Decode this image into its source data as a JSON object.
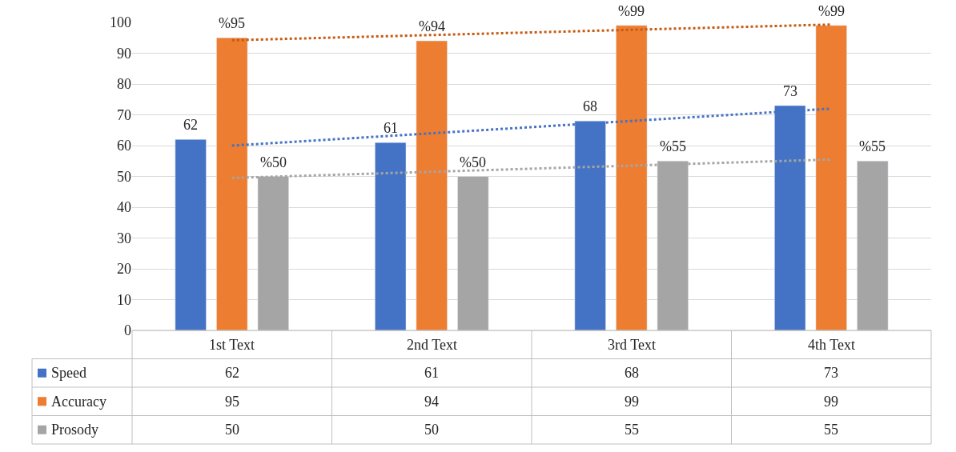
{
  "chart_data": {
    "type": "bar",
    "categories": [
      "1st Text",
      "2nd Text",
      "3rd Text",
      "4th Text"
    ],
    "series": [
      {
        "name": "Speed",
        "color": "#4472c4",
        "values": [
          62,
          61,
          68,
          73
        ]
      },
      {
        "name": "Accuracy",
        "color": "#ed7d31",
        "values": [
          95,
          94,
          99,
          99
        ]
      },
      {
        "name": "Prosody",
        "color": "#a5a5a5",
        "values": [
          50,
          50,
          55,
          55
        ]
      },
      {
        "type": "line",
        "color": "#4472c4",
        "line_style": "dotted",
        "x": [
          "1st Text",
          "2nd Text",
          "3rd Text",
          "4th Text"
        ],
        "values": [
          60,
          64,
          68,
          72
        ],
        "value_labels": [
          null,
          null,
          null,
          null
        ]
      },
      {
        "type": "line",
        "color": "#c55a11",
        "line_style": "dotted",
        "x": [
          "1st Text",
          "2nd Text",
          "3rd Text",
          "4th Text"
        ],
        "values": [
          94.2,
          95.9,
          97.6,
          99.3
        ],
        "value_labels": [
          null,
          null,
          null,
          null
        ]
      },
      {
        "type": "line",
        "color": "#a5a5a5",
        "line_style": "dotted",
        "x": [
          "1st Text",
          "2nd Text",
          "3rd Text",
          "4th Text"
        ],
        "values": [
          49.5,
          51.5,
          53.5,
          55.5
        ],
        "value_labels": [
          null,
          null,
          null,
          null
        ]
      }
    ],
    "annotations": [
      "62",
      "61",
      "68",
      "73",
      "%95",
      "%94",
      "%99",
      "%99",
      "%50",
      "%50",
      "%55",
      "%55"
    ],
    "ylim": [
      0,
      100
    ],
    "yticks": [
      0,
      10,
      20,
      30,
      40,
      50,
      60,
      70,
      80,
      90,
      100
    ],
    "grid": "y",
    "legend": "bottom",
    "data_labels": true
  }
}
